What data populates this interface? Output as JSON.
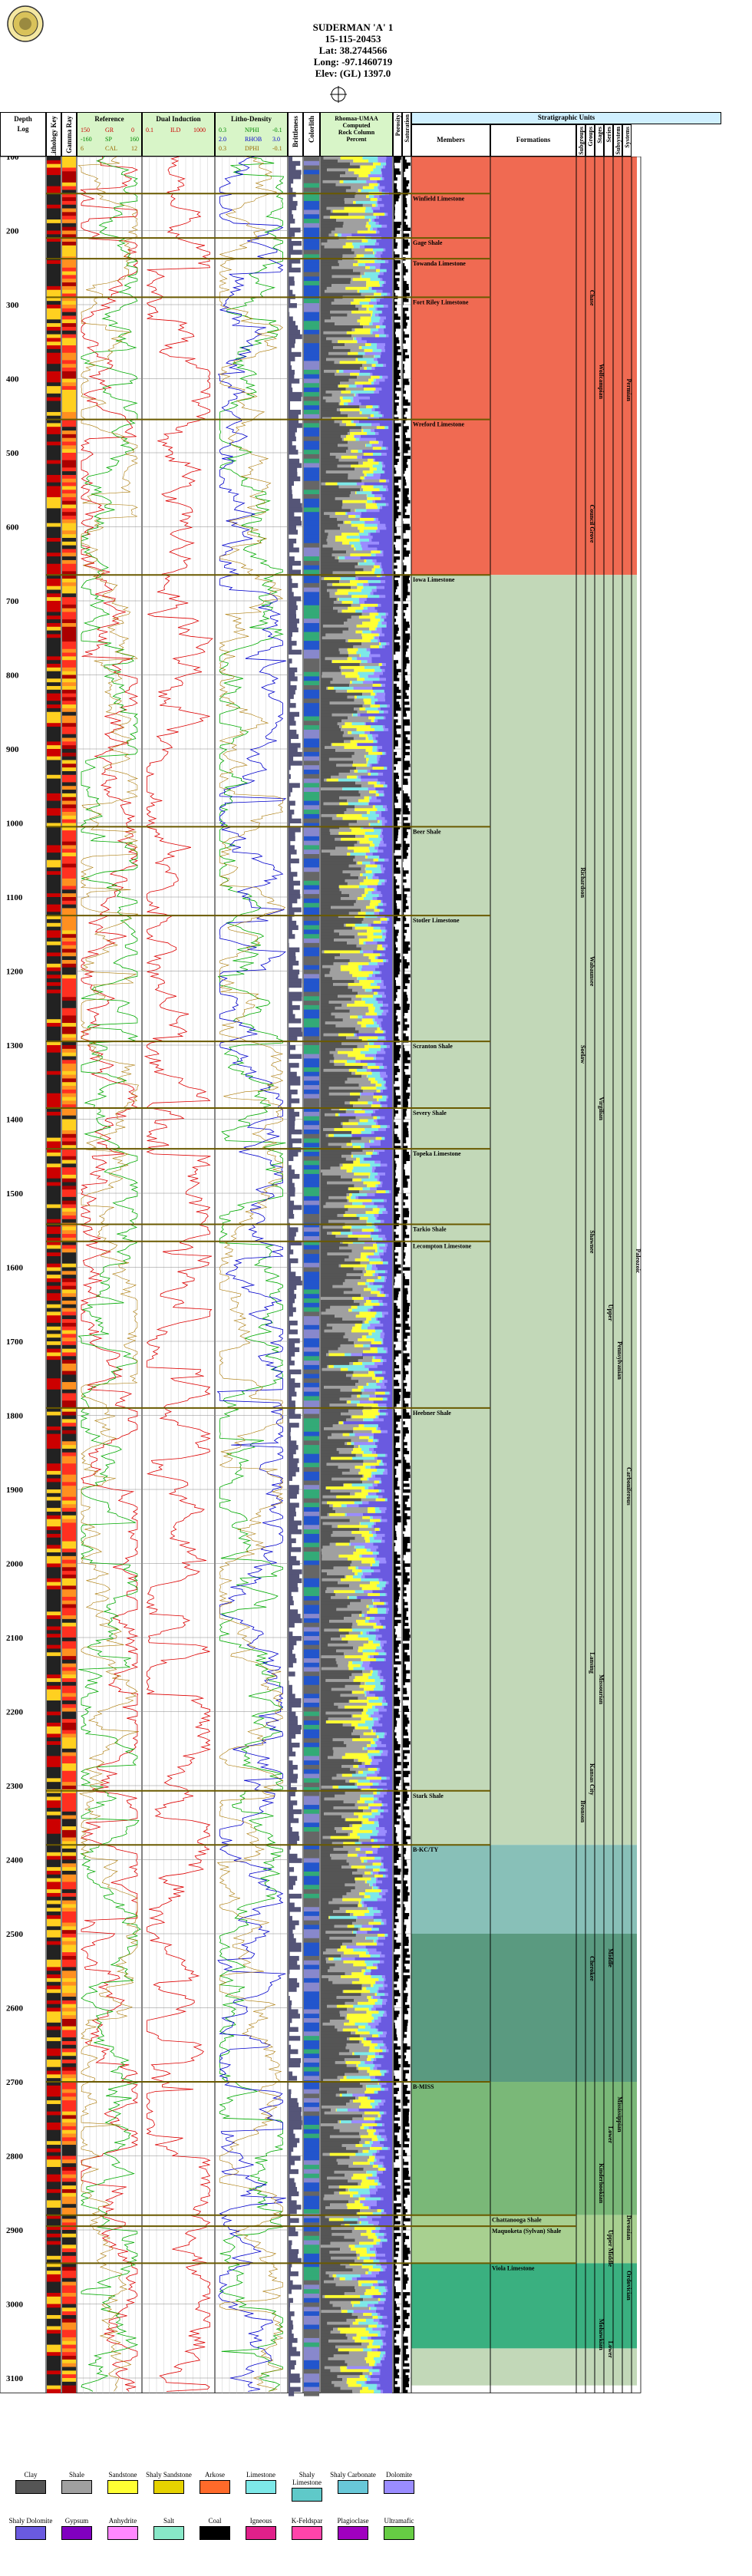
{
  "header": {
    "well_name": "SUDERMAN 'A' 1",
    "api": "15-115-20453",
    "lat": "Lat: 38.2744566",
    "long": "Long: -97.1460719",
    "elev": "Elev: (GL) 1397.0"
  },
  "tracks": {
    "depth": "Depth",
    "log": "Log",
    "lithology_key": "Lithology Key",
    "gamma_ray": "Gamma Ray",
    "reference": "Reference",
    "gr": "GR",
    "gr_range": [
      "150",
      "0"
    ],
    "sp": "SP",
    "sp_range": [
      "-160",
      "160"
    ],
    "cal": "CAL",
    "cal_range": [
      "6",
      "12"
    ],
    "dual_induction": "Dual Induction",
    "ild": "ILD",
    "ild_range": [
      "0.1",
      "1000"
    ],
    "litho_density": "Litho-Density",
    "nphi": "NPHI",
    "rhob": "RHOB",
    "dphi": "DPHI",
    "nphi_range": [
      "0.3",
      "-0.1"
    ],
    "rhob_range": [
      "2.0",
      "3.0"
    ],
    "dphi_range": [
      "0.3",
      "-0.1"
    ],
    "brittleness": "Brittleness",
    "colorlith": "Colorlith",
    "rhomaa_umaa": "Rhomaa-UMAA",
    "computed": "Computed",
    "rock_column": "Rock Column",
    "percent": "Percent",
    "percent_ticks": [
      "10",
      "30",
      "50",
      "70",
      "90"
    ],
    "porosity": "Porosity",
    "saturation": "Saturation",
    "sat_ticks": [
      "0",
      "50"
    ],
    "strat_units": "Stratigraphic Units",
    "members": "Members",
    "formations": "Formations",
    "subgroups": "Subgroups",
    "groups": "Groups",
    "stages": "Stages",
    "series": "Series",
    "subsystem": "Subsystem",
    "systems": "Systems"
  },
  "depths": [
    "100",
    "200",
    "300",
    "400",
    "500",
    "600",
    "700",
    "800",
    "900",
    "1000",
    "1100",
    "1200",
    "1300",
    "1400",
    "1500",
    "1600",
    "1700",
    "1800",
    "1900",
    "2000",
    "2100",
    "2200",
    "2300",
    "2400",
    "2500",
    "2600",
    "2700",
    "2800",
    "2900",
    "3000",
    "3100"
  ],
  "members": [
    {
      "name": "Winfield Limestone",
      "depth": 150
    },
    {
      "name": "Gage Shale",
      "depth": 210
    },
    {
      "name": "Towanda Limestone",
      "depth": 238
    },
    {
      "name": "Fort Riley Limestone",
      "depth": 290
    },
    {
      "name": "Wreford Limestone",
      "depth": 455
    },
    {
      "name": "Iowa Limestone",
      "depth": 665
    },
    {
      "name": "Beer Shale",
      "depth": 1005
    },
    {
      "name": "Stotler Limestone",
      "depth": 1125
    },
    {
      "name": "Scranton Shale",
      "depth": 1295
    },
    {
      "name": "Severy Shale",
      "depth": 1385
    },
    {
      "name": "Topeka Limestone",
      "depth": 1440
    },
    {
      "name": "Tarkio Shale",
      "depth": 1542
    },
    {
      "name": "Lecompton Limestone",
      "depth": 1565
    },
    {
      "name": "Heebner Shale",
      "depth": 1790
    },
    {
      "name": "Stark Shale",
      "depth": 2307
    },
    {
      "name": "B-KC/TY",
      "depth": 2380
    },
    {
      "name": "B-MISS",
      "depth": 2700
    }
  ],
  "formations": [
    {
      "name": "Chattanooga Shale",
      "depth": 2880
    },
    {
      "name": "Maquoketa (Sylvan) Shale",
      "depth": 2895
    },
    {
      "name": "Viola Limestone",
      "depth": 2945
    }
  ],
  "strat_vertical": [
    {
      "name": "Chase",
      "col": "groups",
      "depth": 280
    },
    {
      "name": "Council Grove",
      "col": "groups",
      "depth": 570
    },
    {
      "name": "Wolfcampian",
      "col": "stages",
      "depth": 380
    },
    {
      "name": "Permian",
      "col": "systems",
      "depth": 400
    },
    {
      "name": "Richardson",
      "col": "subgroups",
      "depth": 1060
    },
    {
      "name": "Wabaunsee",
      "col": "groups",
      "depth": 1180
    },
    {
      "name": "Soelaw",
      "col": "subgroups",
      "depth": 1300
    },
    {
      "name": "Virgilian",
      "col": "stages",
      "depth": 1370
    },
    {
      "name": "Shawnee",
      "col": "groups",
      "depth": 1550
    },
    {
      "name": "Upper",
      "col": "series",
      "depth": 1650
    },
    {
      "name": "Pennsylvanian",
      "col": "subsystem",
      "depth": 1700
    },
    {
      "name": "Paleozoic",
      "col": "era",
      "depth": 1575
    },
    {
      "name": "Carboniferous",
      "col": "systems",
      "depth": 1870
    },
    {
      "name": "Lansing",
      "col": "groups",
      "depth": 2120
    },
    {
      "name": "Missourian",
      "col": "stages",
      "depth": 2150
    },
    {
      "name": "Kansas City",
      "col": "groups",
      "depth": 2270
    },
    {
      "name": "Bronson",
      "col": "subgroups",
      "depth": 2320
    },
    {
      "name": "Cherokee",
      "col": "groups",
      "depth": 2530
    },
    {
      "name": "Middle",
      "col": "series",
      "depth": 2520
    },
    {
      "name": "Mississippian",
      "col": "subsystem",
      "depth": 2720
    },
    {
      "name": "Lower",
      "col": "series",
      "depth": 2760
    },
    {
      "name": "Kinderhookian",
      "col": "stages",
      "depth": 2810
    },
    {
      "name": "Upper Middle",
      "col": "series",
      "depth": 2900
    },
    {
      "name": "Devonian",
      "col": "systems",
      "depth": 2880
    },
    {
      "name": "Ordovician",
      "col": "systems",
      "depth": 2955
    },
    {
      "name": "Mohawkian",
      "col": "stages",
      "depth": 3020
    },
    {
      "name": "Lower",
      "col": "series",
      "depth": 3050
    }
  ],
  "legend": [
    {
      "name": "Clay",
      "color": "#555555"
    },
    {
      "name": "Shale",
      "color": "#a0a0a0"
    },
    {
      "name": "Sandstone",
      "color": "#ffff33"
    },
    {
      "name": "Shaly Sandstone",
      "color": "#e6d200"
    },
    {
      "name": "Arkose",
      "color": "#ff6a2a"
    },
    {
      "name": "Limestone",
      "color": "#7de8e8"
    },
    {
      "name": "Shaly Limestone",
      "color": "#5fc9c9"
    },
    {
      "name": "Shaly Carbonate",
      "color": "#68c8d8"
    },
    {
      "name": "Dolomite",
      "color": "#9a8cff"
    },
    {
      "name": "Shaly Dolomite",
      "color": "#6a5ae0"
    },
    {
      "name": "Gypsum",
      "color": "#8000c0"
    },
    {
      "name": "Anhydrite",
      "color": "#ff88ff"
    },
    {
      "name": "Salt",
      "color": "#88e8c8"
    },
    {
      "name": "Coal",
      "color": "#000000"
    },
    {
      "name": "Igneous",
      "color": "#e0208a"
    },
    {
      "name": "K-Feldspar",
      "color": "#ff44aa"
    },
    {
      "name": "Plagioclase",
      "color": "#a000c0"
    },
    {
      "name": "Ultramafic",
      "color": "#66cc44"
    }
  ],
  "colors": {
    "permian": "#f06a52",
    "pennsylvanian": "#c2d8b8",
    "cherokee": "#88c0b8",
    "mississippian": "#7ab878",
    "devonian": "#a8d090",
    "ordovician": "#3ab080"
  }
}
